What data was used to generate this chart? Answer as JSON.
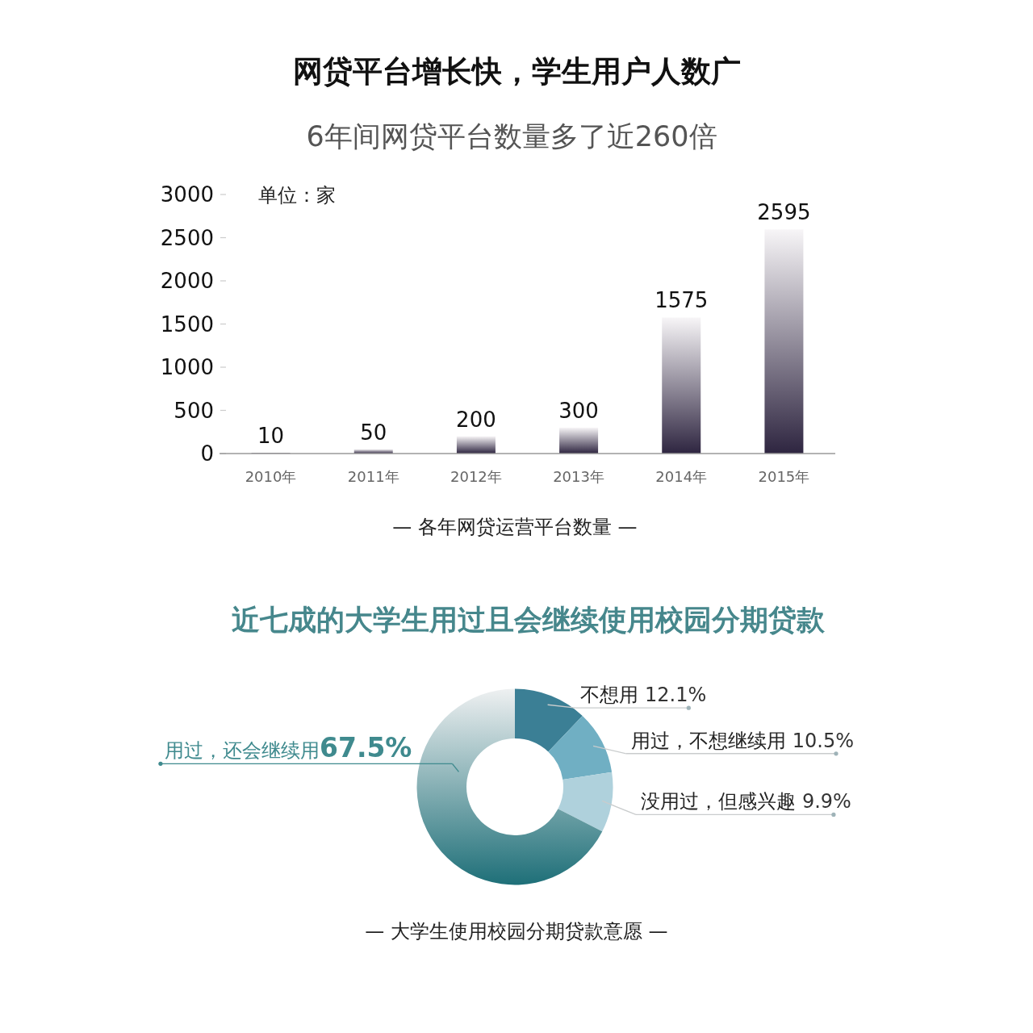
{
  "chart_data": [
    {
      "type": "bar",
      "title": "网贷平台增长快，学生用户人数广",
      "subtitle": "6年间网贷平台数量多了近260倍",
      "ylabel": "单位：家",
      "annotations": [
        "— 各年网贷运营平台数量 —"
      ],
      "categories": [
        "2010年",
        "2011年",
        "2012年",
        "2013年",
        "2014年",
        "2015年"
      ],
      "values": [
        10,
        50,
        200,
        300,
        1575,
        2595
      ],
      "color": "#2e2540",
      "ylim": [
        0,
        3000
      ],
      "yticks": [
        0,
        500,
        1000,
        1500,
        2000,
        2500,
        3000
      ],
      "data_labels": true
    },
    {
      "type": "donut",
      "title": "近七成的大学生用过且会继续使用校园分期贷款",
      "annotations": [
        "— 大学生使用校园分期贷款意愿 —"
      ],
      "categories": [
        "不想用",
        "用过，不想继续用",
        "没用过，但感兴趣",
        "用过，还会继续用"
      ],
      "values": [
        12.1,
        10.5,
        9.9,
        67.5
      ],
      "value_labels": [
        "12.1%",
        "10.5%",
        "9.9%",
        "67.5%"
      ],
      "colors": [
        "#3b7f95",
        "#70afc3",
        "#afd1dc",
        "#1e6f78"
      ]
    }
  ]
}
